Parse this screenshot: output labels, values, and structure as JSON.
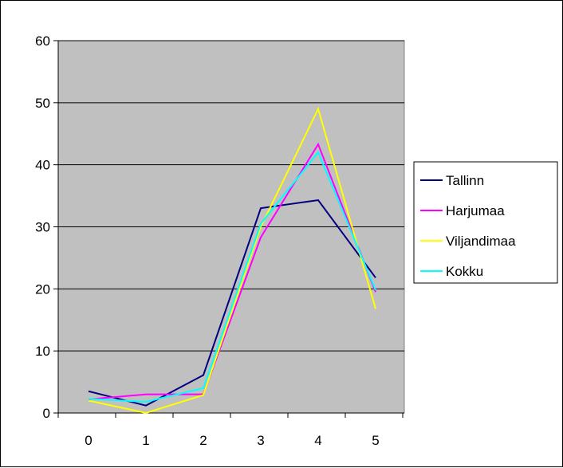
{
  "chart_data": {
    "type": "line",
    "x": [
      0,
      1,
      2,
      3,
      4,
      5
    ],
    "xlim": [
      0,
      5
    ],
    "ylim": [
      0,
      60
    ],
    "yticks": [
      0,
      10,
      20,
      30,
      40,
      50,
      60
    ],
    "grid": true,
    "legend_position": "right",
    "plot_background": "#c0c0c0",
    "series": [
      {
        "name": "Tallinn",
        "color": "#000080",
        "values": [
          3.5,
          1.2,
          6.1,
          33,
          34.3,
          21.8
        ]
      },
      {
        "name": "Harjumaa",
        "color": "#ff00ff",
        "values": [
          2.2,
          3,
          3,
          28.3,
          43.3,
          19.5
        ]
      },
      {
        "name": "Viljandimaa",
        "color": "#ffff00",
        "values": [
          2,
          0,
          2.9,
          30,
          49,
          16.8
        ]
      },
      {
        "name": "Kokku",
        "color": "#00ffff",
        "values": [
          2.3,
          1.8,
          4,
          30.5,
          42,
          19.8
        ]
      }
    ]
  }
}
